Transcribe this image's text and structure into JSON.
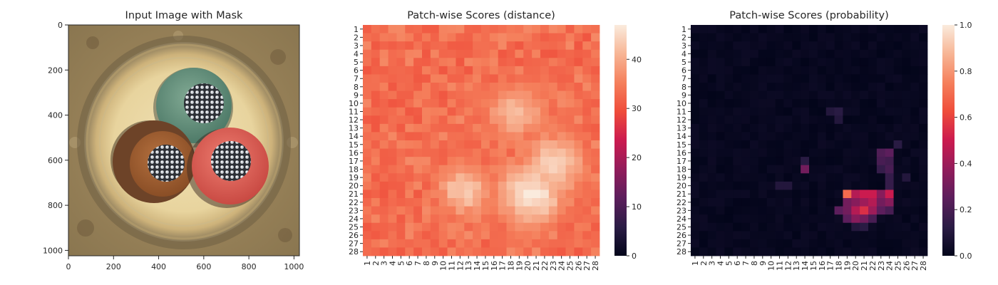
{
  "chart_data": [
    {
      "type": "image",
      "title": "Input Image with Mask",
      "xticks": [
        0,
        200,
        400,
        600,
        800,
        1000
      ],
      "yticks": [
        0,
        200,
        400,
        600,
        800,
        1000
      ],
      "xlim": [
        0,
        1024
      ],
      "ylim": [
        1024,
        0
      ]
    },
    {
      "type": "heatmap",
      "title": "Patch-wise Scores (distance)",
      "rows": 28,
      "cols": 28,
      "row_labels": [
        "1",
        "2",
        "3",
        "4",
        "5",
        "6",
        "7",
        "8",
        "9",
        "10",
        "11",
        "12",
        "13",
        "14",
        "15",
        "16",
        "17",
        "18",
        "19",
        "20",
        "21",
        "22",
        "23",
        "24",
        "25",
        "26",
        "27",
        "28"
      ],
      "col_labels": [
        "1",
        "2",
        "3",
        "4",
        "5",
        "6",
        "7",
        "8",
        "9",
        "10",
        "11",
        "12",
        "13",
        "14",
        "15",
        "16",
        "17",
        "18",
        "19",
        "20",
        "21",
        "22",
        "23",
        "24",
        "25",
        "26",
        "27",
        "28"
      ],
      "colorbar_ticks": [
        0,
        10,
        20,
        30,
        40
      ],
      "vmin": 0,
      "vmax": 47,
      "background_level": 32,
      "hotspots": [
        {
          "row": 11,
          "col": 18.5,
          "value": 42,
          "spread": 2.2
        },
        {
          "row": 17.5,
          "col": 23,
          "value": 44,
          "spread": 2.5
        },
        {
          "row": 20.5,
          "col": 12.5,
          "value": 44,
          "spread": 2.0
        },
        {
          "row": 21,
          "col": 20.5,
          "value": 47,
          "spread": 2.6
        }
      ]
    },
    {
      "type": "heatmap",
      "title": "Patch-wise Scores (probability)",
      "rows": 28,
      "cols": 28,
      "row_labels": [
        "1",
        "2",
        "3",
        "4",
        "5",
        "6",
        "7",
        "8",
        "9",
        "10",
        "11",
        "12",
        "13",
        "14",
        "15",
        "16",
        "17",
        "18",
        "19",
        "20",
        "21",
        "22",
        "23",
        "24",
        "25",
        "26",
        "27",
        "28"
      ],
      "col_labels": [
        "1",
        "2",
        "3",
        "4",
        "5",
        "6",
        "7",
        "8",
        "9",
        "10",
        "11",
        "12",
        "13",
        "14",
        "15",
        "16",
        "17",
        "18",
        "19",
        "20",
        "21",
        "22",
        "23",
        "24",
        "25",
        "26",
        "27",
        "28"
      ],
      "colorbar_ticks": [
        0.0,
        0.2,
        0.4,
        0.6,
        0.8,
        1.0
      ],
      "colorbar_labels": [
        "0.0",
        "0.2",
        "0.4",
        "0.6",
        "0.8",
        "1.0"
      ],
      "vmin": 0,
      "vmax": 1,
      "background_level": 0.02,
      "hotspots": [
        {
          "row": 21,
          "col": 19,
          "value": 0.7
        },
        {
          "row": 21,
          "col": 20,
          "value": 0.45
        },
        {
          "row": 21,
          "col": 21,
          "value": 0.5
        },
        {
          "row": 21,
          "col": 22,
          "value": 0.5
        },
        {
          "row": 21,
          "col": 23,
          "value": 0.35
        },
        {
          "row": 21,
          "col": 24,
          "value": 0.5
        },
        {
          "row": 22,
          "col": 19,
          "value": 0.3
        },
        {
          "row": 22,
          "col": 20,
          "value": 0.35
        },
        {
          "row": 22,
          "col": 21,
          "value": 0.4
        },
        {
          "row": 22,
          "col": 22,
          "value": 0.45
        },
        {
          "row": 22,
          "col": 23,
          "value": 0.3
        },
        {
          "row": 22,
          "col": 24,
          "value": 0.35
        },
        {
          "row": 23,
          "col": 18,
          "value": 0.25
        },
        {
          "row": 23,
          "col": 19,
          "value": 0.3
        },
        {
          "row": 23,
          "col": 20,
          "value": 0.45
        },
        {
          "row": 23,
          "col": 21,
          "value": 0.55
        },
        {
          "row": 23,
          "col": 22,
          "value": 0.4
        },
        {
          "row": 23,
          "col": 23,
          "value": 0.25
        },
        {
          "row": 23,
          "col": 24,
          "value": 0.2
        },
        {
          "row": 24,
          "col": 19,
          "value": 0.25
        },
        {
          "row": 24,
          "col": 20,
          "value": 0.35
        },
        {
          "row": 24,
          "col": 21,
          "value": 0.3
        },
        {
          "row": 24,
          "col": 22,
          "value": 0.2
        },
        {
          "row": 18,
          "col": 14,
          "value": 0.3
        },
        {
          "row": 17,
          "col": 14,
          "value": 0.12
        },
        {
          "row": 16,
          "col": 23,
          "value": 0.22
        },
        {
          "row": 16,
          "col": 24,
          "value": 0.25
        },
        {
          "row": 17,
          "col": 23,
          "value": 0.2
        },
        {
          "row": 17,
          "col": 24,
          "value": 0.18
        },
        {
          "row": 18,
          "col": 23,
          "value": 0.15
        },
        {
          "row": 18,
          "col": 24,
          "value": 0.2
        },
        {
          "row": 19,
          "col": 24,
          "value": 0.15
        },
        {
          "row": 20,
          "col": 24,
          "value": 0.15
        },
        {
          "row": 11,
          "col": 17,
          "value": 0.1
        },
        {
          "row": 11,
          "col": 18,
          "value": 0.12
        },
        {
          "row": 12,
          "col": 18,
          "value": 0.1
        },
        {
          "row": 20,
          "col": 12,
          "value": 0.1
        },
        {
          "row": 20,
          "col": 11,
          "value": 0.1
        },
        {
          "row": 25,
          "col": 20,
          "value": 0.1
        },
        {
          "row": 25,
          "col": 21,
          "value": 0.12
        },
        {
          "row": 15,
          "col": 25,
          "value": 0.12
        },
        {
          "row": 19,
          "col": 26,
          "value": 0.1
        }
      ]
    }
  ]
}
